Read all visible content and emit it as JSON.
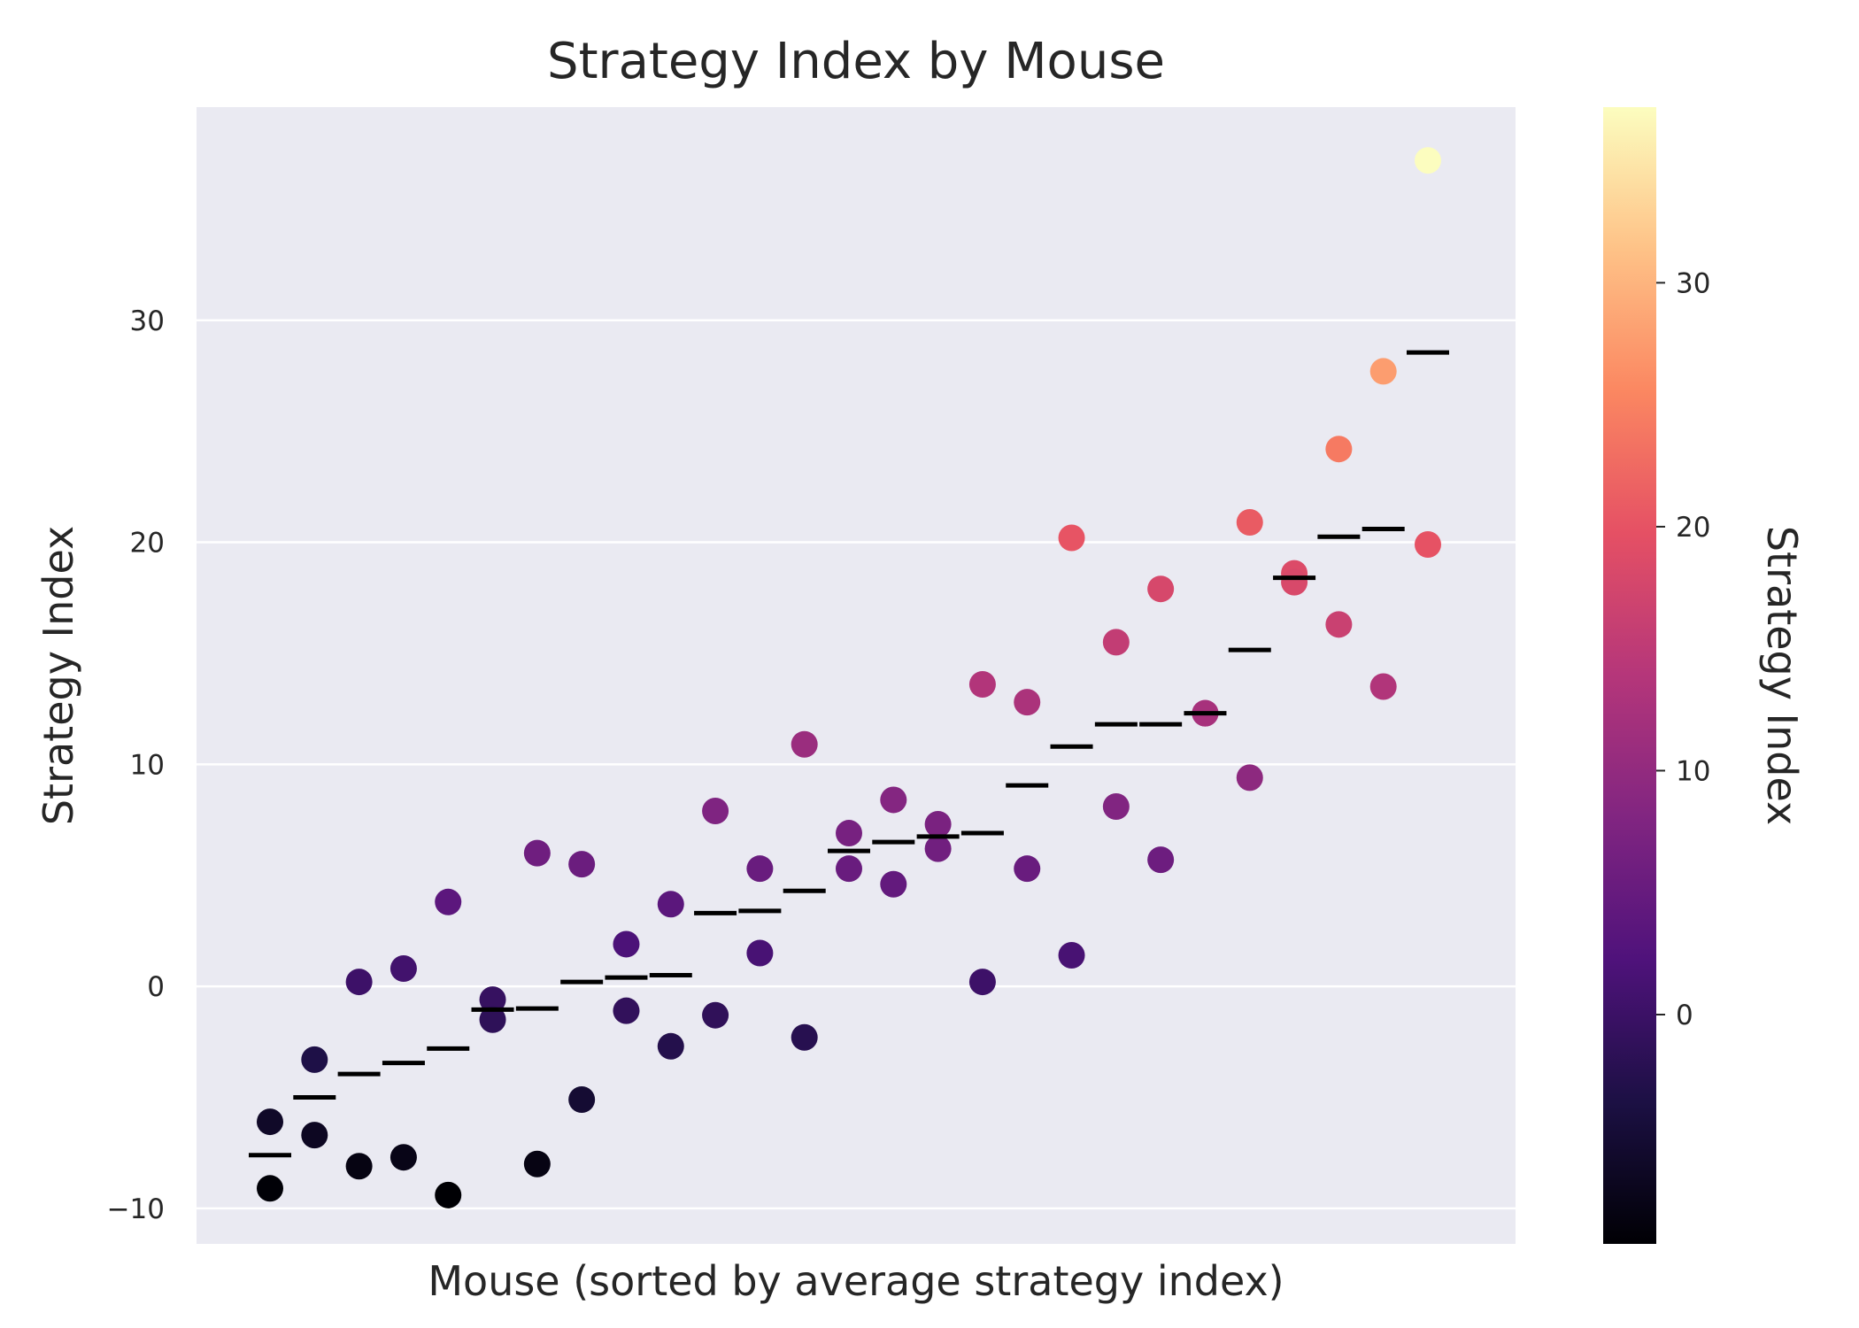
{
  "chart_data": {
    "type": "scatter",
    "title": "Strategy Index by Mouse",
    "xlabel": "Mouse (sorted by average strategy index)",
    "ylabel": "Strategy Index",
    "ylim": [
      -11.6,
      39.6
    ],
    "yticks": [
      -10,
      0,
      10,
      20,
      30
    ],
    "ytick_labels": [
      "−10",
      "0",
      "10",
      "20",
      "30"
    ],
    "grid": true,
    "legend": "none",
    "background": "#eaeaf2",
    "grid_color": "#ffffff",
    "mean_marker_color": "#000000",
    "colorbar": {
      "label": "Strategy Index",
      "colormap": "magma",
      "range": [
        -9.4,
        37.2
      ],
      "ticks": [
        0,
        10,
        20,
        30
      ],
      "tick_labels": [
        "0",
        "10",
        "20",
        "30"
      ]
    },
    "mice": [
      {
        "mouse": 1,
        "values": [
          -6.1,
          -9.1
        ],
        "mean": -7.6
      },
      {
        "mouse": 2,
        "values": [
          -3.3,
          -6.7
        ],
        "mean": -5.0
      },
      {
        "mouse": 3,
        "values": [
          0.2,
          -8.1
        ],
        "mean": -3.95
      },
      {
        "mouse": 4,
        "values": [
          0.8,
          -7.7
        ],
        "mean": -3.45
      },
      {
        "mouse": 5,
        "values": [
          3.8,
          -9.4
        ],
        "mean": -2.8
      },
      {
        "mouse": 6,
        "values": [
          -0.6,
          -1.5
        ],
        "mean": -1.05
      },
      {
        "mouse": 7,
        "values": [
          6.0,
          -8.0
        ],
        "mean": -1.0
      },
      {
        "mouse": 8,
        "values": [
          5.5,
          -5.1
        ],
        "mean": 0.2
      },
      {
        "mouse": 9,
        "values": [
          1.9,
          -1.1
        ],
        "mean": 0.4
      },
      {
        "mouse": 10,
        "values": [
          3.7,
          -2.7
        ],
        "mean": 0.5
      },
      {
        "mouse": 11,
        "values": [
          7.9,
          -1.3
        ],
        "mean": 3.3
      },
      {
        "mouse": 12,
        "values": [
          5.3,
          1.5
        ],
        "mean": 3.4
      },
      {
        "mouse": 13,
        "values": [
          10.9,
          -2.3
        ],
        "mean": 4.3
      },
      {
        "mouse": 14,
        "values": [
          6.9,
          5.3
        ],
        "mean": 6.1
      },
      {
        "mouse": 15,
        "values": [
          8.4,
          4.6
        ],
        "mean": 6.5
      },
      {
        "mouse": 16,
        "values": [
          7.3,
          6.2
        ],
        "mean": 6.75
      },
      {
        "mouse": 17,
        "values": [
          13.6,
          0.2
        ],
        "mean": 6.9
      },
      {
        "mouse": 18,
        "values": [
          12.8,
          5.3
        ],
        "mean": 9.05
      },
      {
        "mouse": 19,
        "values": [
          20.2,
          1.4
        ],
        "mean": 10.8
      },
      {
        "mouse": 20,
        "values": [
          15.5,
          8.1
        ],
        "mean": 11.8
      },
      {
        "mouse": 21,
        "values": [
          17.9,
          5.7
        ],
        "mean": 11.8
      },
      {
        "mouse": 22,
        "values": [
          12.3,
          12.3
        ],
        "mean": 12.3
      },
      {
        "mouse": 23,
        "values": [
          20.9,
          9.4
        ],
        "mean": 15.15
      },
      {
        "mouse": 24,
        "values": [
          18.6,
          18.2
        ],
        "mean": 18.4
      },
      {
        "mouse": 25,
        "values": [
          24.2,
          16.3
        ],
        "mean": 20.25
      },
      {
        "mouse": 26,
        "values": [
          27.7,
          13.5
        ],
        "mean": 20.6
      },
      {
        "mouse": 27,
        "values": [
          37.2,
          19.9
        ],
        "mean": 28.55
      }
    ]
  }
}
